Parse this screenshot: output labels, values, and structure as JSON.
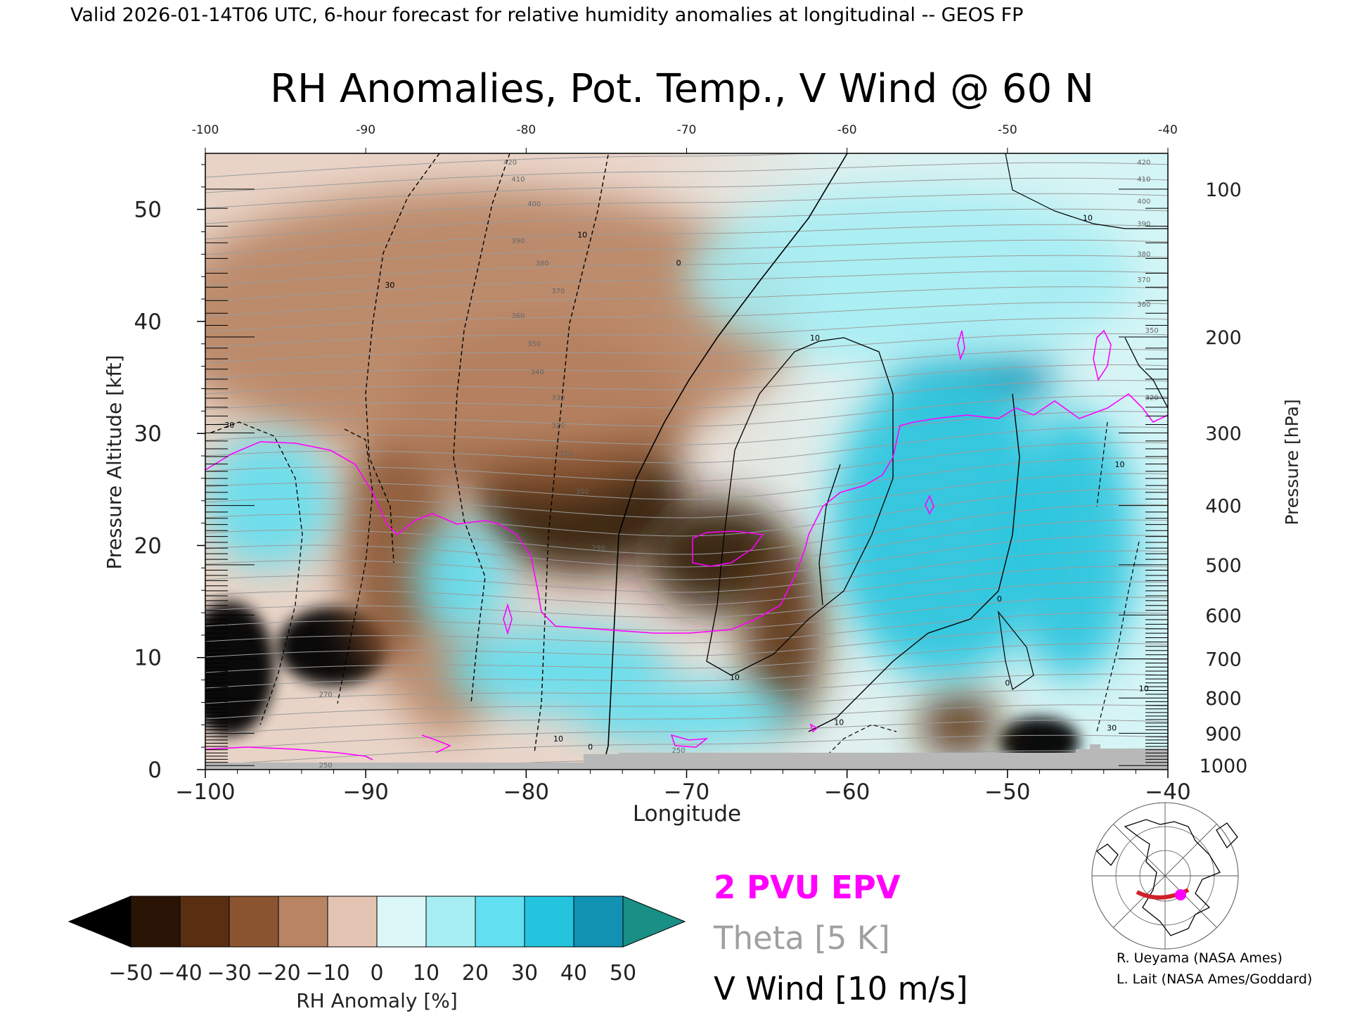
{
  "header": {
    "valid_line": "Valid 2026-01-14T06 UTC, 6-hour forecast for relative humidity anomalies at longitudinal -- GEOS FP"
  },
  "chart_data": {
    "type": "heatmap",
    "title": "RH Anomalies, Pot. Temp., V Wind @ 60 N",
    "xlabel": "Longitude",
    "ylabel_left": "Pressure Altitude [kft]",
    "ylabel_right": "Pressure [hPa]",
    "xlim": [
      -100,
      -40
    ],
    "ylim": [
      0,
      55
    ],
    "x_ticks": [
      -100,
      -90,
      -80,
      -70,
      -60,
      -50,
      -40
    ],
    "x_tick_labels": [
      "−100",
      "−90",
      "−80",
      "−70",
      "−60",
      "−50",
      "−40"
    ],
    "top_tick_labels": [
      "-100",
      "-90",
      "-80",
      "-70",
      "-60",
      "-50",
      "-40"
    ],
    "y_ticks": [
      0,
      10,
      20,
      30,
      40,
      50
    ],
    "pressure_ticks": [
      {
        "hpa": 100,
        "label": "100"
      },
      {
        "hpa": 200,
        "label": "200"
      },
      {
        "hpa": 300,
        "label": "300"
      },
      {
        "hpa": 400,
        "label": "400"
      },
      {
        "hpa": 500,
        "label": "500"
      },
      {
        "hpa": 600,
        "label": "600"
      },
      {
        "hpa": 700,
        "label": "700"
      },
      {
        "hpa": 800,
        "label": "800"
      },
      {
        "hpa": 900,
        "label": "900"
      },
      {
        "hpa": 1000,
        "label": "1000"
      }
    ],
    "anomaly_blobs": [
      {
        "lon": -76.5,
        "kft": 24,
        "rx": 6.5,
        "ry": 6.5,
        "value": -45
      },
      {
        "lon": -68,
        "kft": 19,
        "rx": 4.5,
        "ry": 5,
        "value": -42
      },
      {
        "lon": -79,
        "kft": 32,
        "rx": 9,
        "ry": 8,
        "value": -30
      },
      {
        "lon": -98.5,
        "kft": 9,
        "rx": 2.8,
        "ry": 6,
        "value": -55
      },
      {
        "lon": -92,
        "kft": 11,
        "rx": 3.5,
        "ry": 3.5,
        "value": -52
      },
      {
        "lon": -88,
        "kft": 20,
        "rx": 3.5,
        "ry": 12,
        "value": -28
      },
      {
        "lon": -64,
        "kft": 12,
        "rx": 2.5,
        "ry": 8,
        "value": -32
      },
      {
        "lon": -48,
        "kft": 2.5,
        "rx": 2.5,
        "ry": 2.2,
        "value": -52
      },
      {
        "lon": -53,
        "kft": 4,
        "rx": 2.5,
        "ry": 3,
        "value": -32
      },
      {
        "lon": -85,
        "kft": 8,
        "rx": 3,
        "ry": 5,
        "value": -20
      },
      {
        "lon": -83,
        "kft": 40,
        "rx": 20,
        "ry": 12,
        "value": -12
      },
      {
        "lon": -96,
        "kft": 24,
        "rx": 4,
        "ry": 6,
        "value": 25
      },
      {
        "lon": -52,
        "kft": 35,
        "rx": 5,
        "ry": 3,
        "value": 45
      },
      {
        "lon": -54,
        "kft": 22,
        "rx": 7,
        "ry": 14,
        "value": 32
      },
      {
        "lon": -46,
        "kft": 20,
        "rx": 4,
        "ry": 12,
        "value": 30
      },
      {
        "lon": -78,
        "kft": 9,
        "rx": 7,
        "ry": 4,
        "value": 24
      },
      {
        "lon": -84,
        "kft": 17,
        "rx": 3,
        "ry": 5,
        "value": 22
      },
      {
        "lon": -70,
        "kft": 5,
        "rx": 7,
        "ry": 3,
        "value": 20
      },
      {
        "lon": -56,
        "kft": 44,
        "rx": 14,
        "ry": 8,
        "value": 12
      }
    ],
    "theta_labels": [
      {
        "lon": -81,
        "kft": 54,
        "text": "420"
      },
      {
        "lon": -80.5,
        "kft": 52.5,
        "text": "410"
      },
      {
        "lon": -79.5,
        "kft": 50.3,
        "text": "400"
      },
      {
        "lon": -80.5,
        "kft": 47,
        "text": "390"
      },
      {
        "lon": -79,
        "kft": 45,
        "text": "380"
      },
      {
        "lon": -78,
        "kft": 42.5,
        "text": "370"
      },
      {
        "lon": -80.5,
        "kft": 40.3,
        "text": "360"
      },
      {
        "lon": -79.5,
        "kft": 37.8,
        "text": "350"
      },
      {
        "lon": -79.3,
        "kft": 35.3,
        "text": "340"
      },
      {
        "lon": -78,
        "kft": 33,
        "text": "330"
      },
      {
        "lon": -78,
        "kft": 30.5,
        "text": "320"
      },
      {
        "lon": -77.5,
        "kft": 28,
        "text": "310"
      },
      {
        "lon": -76.5,
        "kft": 24.6,
        "text": "300"
      },
      {
        "lon": -75.5,
        "kft": 19.6,
        "text": "290"
      },
      {
        "lon": -69,
        "kft": 15,
        "text": "280"
      },
      {
        "lon": -92.5,
        "kft": 6.5,
        "text": "270"
      },
      {
        "lon": -92.5,
        "kft": 0.2,
        "text": "250"
      },
      {
        "lon": -70.5,
        "kft": 1.5,
        "text": "250"
      },
      {
        "lon": -41.5,
        "kft": 54,
        "text": "420"
      },
      {
        "lon": -41.5,
        "kft": 52.5,
        "text": "410"
      },
      {
        "lon": -41.5,
        "kft": 50.5,
        "text": "400"
      },
      {
        "lon": -41.5,
        "kft": 48.5,
        "text": "390"
      },
      {
        "lon": -41.5,
        "kft": 45.8,
        "text": "380"
      },
      {
        "lon": -41.5,
        "kft": 43.5,
        "text": "370"
      },
      {
        "lon": -41.5,
        "kft": 41.3,
        "text": "360"
      },
      {
        "lon": -41,
        "kft": 39,
        "text": "350"
      },
      {
        "lon": -41,
        "kft": 33,
        "text": "320"
      }
    ],
    "wind_labels": [
      {
        "lon": -88.5,
        "kft": 43,
        "text": "30"
      },
      {
        "lon": -98.5,
        "kft": 30.5,
        "text": "30"
      },
      {
        "lon": -76.5,
        "kft": 47.5,
        "text": "10"
      },
      {
        "lon": -70.5,
        "kft": 45,
        "text": "0"
      },
      {
        "lon": -62,
        "kft": 38.3,
        "text": "10"
      },
      {
        "lon": -45,
        "kft": 49,
        "text": "10"
      },
      {
        "lon": -67,
        "kft": 8,
        "text": "10"
      },
      {
        "lon": -60.5,
        "kft": 4,
        "text": "10"
      },
      {
        "lon": -50.5,
        "kft": 15,
        "text": "0"
      },
      {
        "lon": -50,
        "kft": 7.5,
        "text": "0"
      },
      {
        "lon": -43,
        "kft": 27,
        "text": "10"
      },
      {
        "lon": -43.5,
        "kft": 3.5,
        "text": "30"
      },
      {
        "lon": -41.5,
        "kft": 7,
        "text": "10"
      },
      {
        "lon": -78,
        "kft": 2.5,
        "text": "10"
      },
      {
        "lon": -76,
        "kft": 1.8,
        "text": "0"
      }
    ],
    "colorbar": {
      "tick_values": [
        -50,
        -40,
        -30,
        -20,
        -10,
        0,
        10,
        20,
        30,
        40,
        50
      ],
      "tick_labels": [
        "−50",
        "−40",
        "−30",
        "−20",
        "−10",
        "0",
        "10",
        "20",
        "30",
        "40",
        "50"
      ],
      "label": "RH Anomaly [%]",
      "under_color": "#000000",
      "over_color": "#1a8f86",
      "colors": [
        "#2a1405",
        "#5a2e10",
        "#8a5530",
        "#b88463",
        "#e3c4b2",
        "#dcf7f7",
        "#a6eef4",
        "#62dff0",
        "#25c4de",
        "#1192b3"
      ]
    },
    "legend": [
      {
        "text": "2 PVU EPV",
        "color": "#ff00ff"
      },
      {
        "text": "Theta [5 K]",
        "color": "#a0a0a0"
      },
      {
        "text": "V Wind [10 m/s]",
        "color": "#000000"
      }
    ],
    "credits": [
      "R. Ueyama (NASA Ames)",
      "L. Lait (NASA Ames/Goddard)"
    ],
    "colors": {
      "epv": "#ff00ff",
      "theta": "#a0a0a0",
      "wind": "#000000",
      "terrain": "#b8b8b8",
      "map_path": "#d0202a",
      "map_point": "#ff00ff"
    }
  }
}
